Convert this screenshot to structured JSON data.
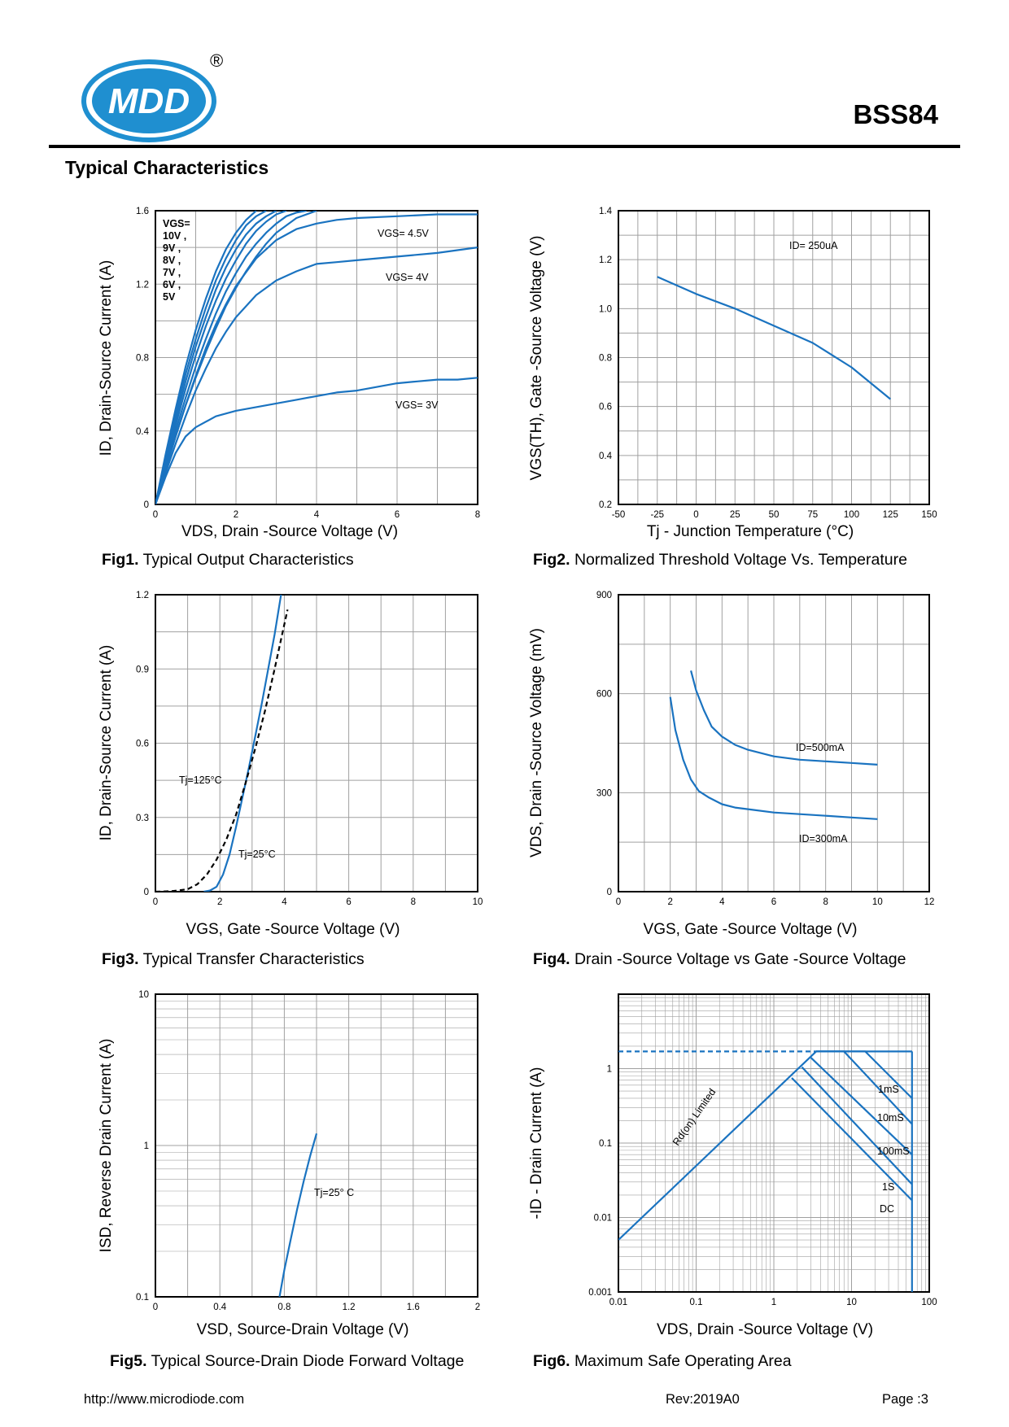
{
  "header": {
    "logo_text": "MDD",
    "registered_mark": "®",
    "part_number": "BSS84",
    "section_title": "Typical Characteristics"
  },
  "colors": {
    "curve": "#1a73c0",
    "dashed": "#000000",
    "grid": "#a0a0a0",
    "logo_blue": "#1f8fd0"
  },
  "footer": {
    "url": "http://www.microdiode.com",
    "rev": "Rev:2019A0",
    "page": "Page :3"
  },
  "chart_data": [
    {
      "id": "fig1",
      "type": "line",
      "caption_num": "Fig1.",
      "caption": "Typical Output Characteristics",
      "xlabel": "VDS, Drain -Source Voltage (V)",
      "ylabel": "ID, Drain-Source Current (A)",
      "xlim": [
        0,
        8
      ],
      "ylim": [
        0,
        1.6
      ],
      "xticks": [
        "0",
        "2",
        "4",
        "6",
        "8"
      ],
      "yticks": [
        "0",
        "0.4",
        "0.8",
        "1.2",
        "1.6"
      ],
      "grid": true,
      "legend_text": [
        "VGS=",
        "10V ,",
        "9V ,",
        "8V ,",
        "7V ,",
        "6V ,",
        "5V"
      ],
      "series": [
        {
          "name": "10V",
          "x": [
            0,
            0.25,
            0.5,
            0.75,
            1,
            1.25,
            1.5,
            1.75,
            2,
            2.25,
            2.5
          ],
          "y": [
            0,
            0.27,
            0.52,
            0.75,
            0.95,
            1.12,
            1.27,
            1.39,
            1.48,
            1.55,
            1.6
          ]
        },
        {
          "name": "9V",
          "x": [
            0,
            0.25,
            0.5,
            0.75,
            1,
            1.25,
            1.5,
            1.75,
            2,
            2.25,
            2.5,
            2.75
          ],
          "y": [
            0,
            0.25,
            0.49,
            0.71,
            0.9,
            1.07,
            1.22,
            1.34,
            1.44,
            1.52,
            1.57,
            1.6
          ]
        },
        {
          "name": "8V",
          "x": [
            0,
            0.25,
            0.5,
            0.75,
            1,
            1.25,
            1.5,
            1.75,
            2,
            2.25,
            2.5,
            2.75,
            3
          ],
          "y": [
            0,
            0.24,
            0.46,
            0.67,
            0.86,
            1.02,
            1.17,
            1.29,
            1.39,
            1.47,
            1.53,
            1.57,
            1.6
          ]
        },
        {
          "name": "7V",
          "x": [
            0,
            0.25,
            0.5,
            0.75,
            1,
            1.25,
            1.5,
            1.75,
            2,
            2.25,
            2.5,
            2.75,
            3,
            3.25
          ],
          "y": [
            0,
            0.22,
            0.43,
            0.63,
            0.81,
            0.97,
            1.11,
            1.23,
            1.33,
            1.42,
            1.49,
            1.54,
            1.58,
            1.6
          ]
        },
        {
          "name": "6V",
          "x": [
            0,
            0.25,
            0.5,
            0.75,
            1,
            1.25,
            1.5,
            1.75,
            2,
            2.25,
            2.5,
            2.75,
            3,
            3.25,
            3.5,
            3.75
          ],
          "y": [
            0,
            0.21,
            0.4,
            0.58,
            0.75,
            0.9,
            1.04,
            1.16,
            1.26,
            1.35,
            1.42,
            1.48,
            1.53,
            1.57,
            1.59,
            1.6
          ]
        },
        {
          "name": "5V",
          "x": [
            0,
            0.25,
            0.5,
            0.75,
            1,
            1.25,
            1.5,
            1.75,
            2,
            2.25,
            2.5,
            2.75,
            3,
            3.5,
            4
          ],
          "y": [
            0,
            0.19,
            0.37,
            0.54,
            0.69,
            0.83,
            0.96,
            1.08,
            1.18,
            1.27,
            1.35,
            1.42,
            1.48,
            1.56,
            1.6
          ]
        },
        {
          "name": "VGS= 4.5V",
          "x": [
            0,
            0.25,
            0.5,
            0.75,
            1,
            1.25,
            1.5,
            1.75,
            2,
            2.5,
            3,
            3.5,
            4,
            4.5,
            5,
            6,
            7,
            8
          ],
          "y": [
            0,
            0.19,
            0.37,
            0.54,
            0.7,
            0.85,
            0.98,
            1.09,
            1.19,
            1.34,
            1.44,
            1.5,
            1.53,
            1.55,
            1.56,
            1.57,
            1.58,
            1.58
          ]
        },
        {
          "name": "VGS= 4V",
          "x": [
            0,
            0.25,
            0.5,
            0.75,
            1,
            1.25,
            1.5,
            1.75,
            2,
            2.5,
            3,
            3.5,
            4,
            4.5,
            5,
            6,
            7,
            8
          ],
          "y": [
            0,
            0.17,
            0.33,
            0.48,
            0.62,
            0.74,
            0.85,
            0.94,
            1.02,
            1.14,
            1.22,
            1.27,
            1.31,
            1.32,
            1.33,
            1.35,
            1.37,
            1.4
          ]
        },
        {
          "name": "VGS= 3V",
          "x": [
            0,
            0.25,
            0.5,
            0.75,
            1,
            1.5,
            2,
            2.5,
            3,
            3.5,
            4,
            4.5,
            5,
            5.5,
            6,
            6.5,
            7,
            7.5,
            8
          ],
          "y": [
            0,
            0.15,
            0.28,
            0.37,
            0.42,
            0.48,
            0.51,
            0.53,
            0.55,
            0.57,
            0.59,
            0.61,
            0.62,
            0.64,
            0.66,
            0.67,
            0.68,
            0.68,
            0.69
          ]
        }
      ]
    },
    {
      "id": "fig2",
      "type": "line",
      "caption_num": "Fig2.",
      "caption": "Normalized Threshold Voltage Vs. Temperature",
      "xlabel": "Tj - Junction Temperature (°C)",
      "ylabel": "VGS(TH), Gate -Source Voltage (V)",
      "xlim": [
        -50,
        150
      ],
      "ylim": [
        0.2,
        1.4
      ],
      "xticks": [
        "-50",
        "-25",
        "0",
        "25",
        "50",
        "75",
        "100",
        "125",
        "150"
      ],
      "yticks": [
        "0.2",
        "0.4",
        "0.6",
        "0.8",
        "1.0",
        "1.2",
        "1.4"
      ],
      "grid": true,
      "annotation": "ID= 250uA",
      "series": [
        {
          "name": "",
          "x": [
            -25,
            0,
            25,
            50,
            75,
            100,
            125
          ],
          "y": [
            1.13,
            1.06,
            1.0,
            0.93,
            0.86,
            0.76,
            0.63
          ]
        }
      ]
    },
    {
      "id": "fig3",
      "type": "line",
      "caption_num": "Fig3.",
      "caption": "Typical Transfer Characteristics",
      "xlabel": "VGS, Gate -Source Voltage (V)",
      "ylabel": "ID, Drain-Source Current (A)",
      "xlim": [
        0,
        10
      ],
      "ylim": [
        0,
        1.2
      ],
      "xticks": [
        "0",
        "2",
        "4",
        "6",
        "8",
        "10"
      ],
      "yticks": [
        "0",
        "0.3",
        "0.6",
        "0.9",
        "1.2"
      ],
      "grid": true,
      "series": [
        {
          "name": "Tj=25°C",
          "style": "solid",
          "x": [
            1.5,
            1.7,
            1.9,
            2.1,
            2.3,
            2.5,
            2.7,
            2.9,
            3.1,
            3.3,
            3.5,
            3.7,
            3.9
          ],
          "y": [
            0,
            0.005,
            0.02,
            0.07,
            0.15,
            0.26,
            0.38,
            0.5,
            0.63,
            0.76,
            0.9,
            1.04,
            1.2
          ]
        },
        {
          "name": "Tj=125°C",
          "style": "dashed",
          "x": [
            0,
            0.5,
            1.0,
            1.3,
            1.6,
            1.9,
            2.2,
            2.5,
            2.8,
            3.1,
            3.4,
            3.7,
            3.9,
            4.1
          ],
          "y": [
            0,
            0.002,
            0.01,
            0.03,
            0.07,
            0.13,
            0.21,
            0.31,
            0.44,
            0.58,
            0.73,
            0.9,
            1.02,
            1.14
          ]
        }
      ]
    },
    {
      "id": "fig4",
      "type": "line",
      "caption_num": "Fig4.",
      "caption": "Drain -Source Voltage vs Gate -Source Voltage",
      "xlabel": "VGS, Gate -Source Voltage (V)",
      "ylabel": "VDS, Drain -Source Voltage (mV)",
      "xlim": [
        0,
        12
      ],
      "ylim": [
        0,
        900
      ],
      "xticks": [
        "0",
        "2",
        "4",
        "6",
        "8",
        "10",
        "12"
      ],
      "yticks": [
        "0",
        "300",
        "600",
        "900"
      ],
      "grid": true,
      "series": [
        {
          "name": "ID=500mA",
          "x": [
            2.8,
            3,
            3.3,
            3.6,
            4,
            4.5,
            5,
            6,
            7,
            8,
            9,
            10
          ],
          "y": [
            670,
            610,
            550,
            500,
            470,
            445,
            430,
            410,
            400,
            395,
            390,
            385
          ]
        },
        {
          "name": "ID=300mA",
          "x": [
            2,
            2.2,
            2.5,
            2.8,
            3.1,
            3.5,
            4,
            4.5,
            5,
            6,
            7,
            8,
            9,
            10
          ],
          "y": [
            590,
            490,
            400,
            340,
            305,
            285,
            265,
            255,
            250,
            240,
            235,
            230,
            225,
            220
          ]
        }
      ]
    },
    {
      "id": "fig5",
      "type": "line",
      "caption_num": "Fig5.",
      "caption": "Typical Source-Drain Diode Forward Voltage",
      "xlabel": "VSD, Source-Drain Voltage (V)",
      "ylabel": "ISD, Reverse Drain Current (A)",
      "xlim": [
        0,
        2
      ],
      "ylim": [
        0.1,
        10
      ],
      "yscale": "log",
      "xticks": [
        "0",
        "0.4",
        "0.8",
        "1.2",
        "1.6",
        "2"
      ],
      "yticks": [
        "0.1",
        "1",
        "10"
      ],
      "grid": true,
      "series": [
        {
          "name": "Tj=25° C",
          "x": [
            0.77,
            0.8,
            0.84,
            0.88,
            0.92,
            0.96,
            1.0
          ],
          "y": [
            0.1,
            0.15,
            0.24,
            0.38,
            0.58,
            0.85,
            1.2
          ]
        }
      ]
    },
    {
      "id": "fig6",
      "type": "line",
      "caption_num": "Fig6.",
      "caption": "Maximum Safe Operating Area",
      "xlabel": "VDS, Drain -Source Voltage (V)",
      "ylabel": "-ID - Drain Current (A)",
      "xlim": [
        0.01,
        100
      ],
      "ylim": [
        0.001,
        10
      ],
      "xscale": "log",
      "yscale": "log",
      "xticks": [
        "0.01",
        "0.1",
        "1",
        "10",
        "100"
      ],
      "yticks": [
        "0.001",
        "0.01",
        "0.1",
        "1"
      ],
      "grid": true,
      "annotation": "Rd(on) Limited",
      "series": [
        {
          "name": "Rd(on) Limited",
          "style": "solid",
          "x": [
            0.01,
            3.5
          ],
          "y": [
            0.005,
            1.7
          ]
        },
        {
          "name": "ID limit",
          "style": "dashed",
          "x": [
            0.01,
            3.5
          ],
          "y": [
            1.7,
            1.7
          ]
        },
        {
          "name": "1mS",
          "style": "solid",
          "x": [
            3.5,
            60
          ],
          "y": [
            1.7,
            1.7
          ]
        },
        {
          "name": "1mS",
          "style": "solid",
          "x": [
            3.5,
            15,
            60
          ],
          "y": [
            1.7,
            1.7,
            0.4
          ]
        },
        {
          "name": "10mS",
          "style": "solid",
          "x": [
            3.5,
            8,
            60
          ],
          "y": [
            1.7,
            1.7,
            0.18
          ]
        },
        {
          "name": "100mS",
          "style": "solid",
          "x": [
            3.0,
            60
          ],
          "y": [
            1.4,
            0.07
          ]
        },
        {
          "name": "1S",
          "style": "solid",
          "x": [
            2.3,
            60
          ],
          "y": [
            1.05,
            0.028
          ]
        },
        {
          "name": "DC",
          "style": "solid",
          "x": [
            1.7,
            60
          ],
          "y": [
            0.75,
            0.017
          ]
        },
        {
          "name": "DC",
          "style": "solid",
          "x": [
            60,
            60
          ],
          "y": [
            1.7,
            0.001
          ]
        }
      ],
      "labels": [
        "1mS",
        "10mS",
        "100mS",
        "1S",
        "DC"
      ]
    }
  ]
}
